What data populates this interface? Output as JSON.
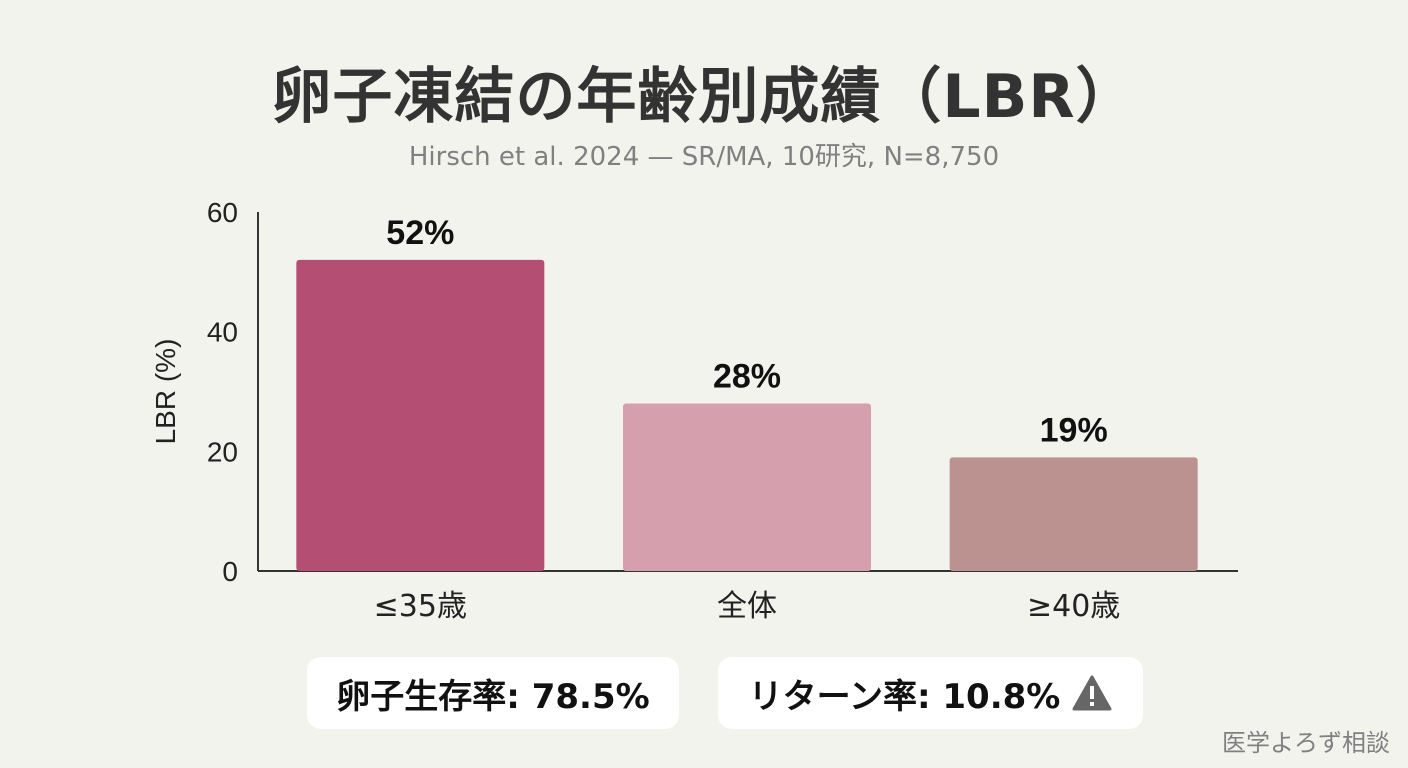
{
  "title": "卵子凍結の年齢別成績（LBR）",
  "subtitle": "Hirsch et al. 2024 — SR/MA, 10研究, N=8,750",
  "chart_data": {
    "type": "bar",
    "title": "卵子凍結の年齢別成績（LBR）",
    "subtitle": "Hirsch et al. 2024 — SR/MA, 10研究, N=8,750",
    "categories": [
      "≤35歳",
      "全体",
      "≥40歳"
    ],
    "values": [
      52,
      28,
      19
    ],
    "data_labels": [
      "52%",
      "28%",
      "19%"
    ],
    "colors": [
      "#b44f73",
      "#d69fad",
      "#bb9290"
    ],
    "xlabel": "",
    "ylabel": "LBR (%)",
    "ylim": [
      0,
      60
    ],
    "yticks": [
      0,
      20,
      40,
      60
    ],
    "grid": false
  },
  "badges": [
    {
      "text": "卵子生存率: 78.5%"
    },
    {
      "text": "リターン率: 10.8%",
      "icon": "warning-icon"
    }
  ],
  "brand": "医学よろず相談"
}
